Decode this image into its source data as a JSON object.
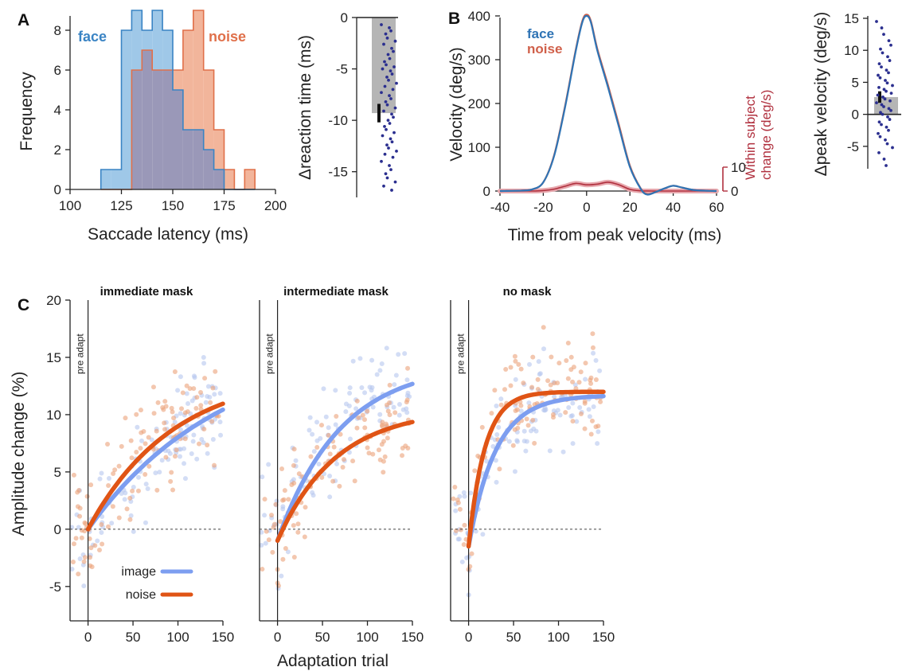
{
  "colors": {
    "face": "#3a84c4",
    "face_fill": "#9fc8e8",
    "noise": "#e0704a",
    "noise_fill": "#f2b59b",
    "overlap": "#9a98b8",
    "velocity_face": "#2f74b5",
    "velocity_noise": "#d0604a",
    "change": "#b0303e",
    "dots": "#2b2f8f",
    "image_fit": "#7d9ef0",
    "noise_fit": "#e05415",
    "image_scatter": "#b6c6ef",
    "noise_scatter": "#eba27a"
  },
  "panels": {
    "A": "A",
    "B": "B",
    "C": "C"
  },
  "chart_data": [
    {
      "id": "A-hist",
      "type": "bar",
      "xlabel": "Saccade latency (ms)",
      "ylabel": "Frequency",
      "xlim": [
        100,
        200
      ],
      "ylim": [
        0,
        9
      ],
      "xticks": [
        100,
        125,
        150,
        175,
        200
      ],
      "yticks": [
        0,
        2,
        4,
        6,
        8
      ],
      "bin_edges": [
        115,
        120,
        125,
        130,
        135,
        140,
        145,
        150,
        155,
        160,
        165,
        170,
        175,
        180,
        185,
        190
      ],
      "series": [
        {
          "name": "face",
          "values": [
            1,
            1,
            8,
            9,
            8,
            9,
            8,
            5,
            3,
            3,
            2,
            1,
            0,
            0,
            0
          ]
        },
        {
          "name": "noise",
          "values": [
            0,
            0,
            0,
            6,
            7,
            6,
            6,
            6,
            8,
            9,
            6,
            3,
            1,
            0,
            1
          ]
        }
      ]
    },
    {
      "id": "A-diff",
      "type": "scatter",
      "ylabel": "Δreaction time (ms)",
      "ylim": [
        -17.5,
        0
      ],
      "yticks": [
        0,
        -5,
        -10,
        -15
      ],
      "bar_mean": -9.3,
      "bar_error": 0.9,
      "points": [
        -0.7,
        -1,
        -1.3,
        -1.6,
        -2,
        -2.3,
        -2.6,
        -3,
        -3.3,
        -3.6,
        -4,
        -4.3,
        -4.6,
        -4.8,
        -5,
        -5.2,
        -5.5,
        -5.8,
        -6.1,
        -6.4,
        -6.7,
        -7,
        -7.3,
        -7.6,
        -7.9,
        -8.2,
        -8.5,
        -8.8,
        -9.1,
        -9.4,
        -9.7,
        -10,
        -10.3,
        -10.6,
        -10.9,
        -11.2,
        -11.5,
        -11.8,
        -12.1,
        -12.4,
        -12.7,
        -13,
        -13.3,
        -13.6,
        -14,
        -14.4,
        -14.8,
        -15.2,
        -15.6,
        -16,
        -16.4,
        -16.8
      ]
    },
    {
      "id": "B-velocity",
      "type": "line",
      "xlabel": "Time from peak velocity (ms)",
      "ylabel": "Velocity (deg/s)",
      "y2label": "Within subject change (deg/s)",
      "xlim": [
        -40,
        60
      ],
      "ylim": [
        0,
        400
      ],
      "y2lim": [
        0,
        10
      ],
      "xticks": [
        -40,
        -20,
        0,
        20,
        40,
        60
      ],
      "yticks": [
        0,
        100,
        200,
        300,
        400
      ],
      "y2ticks": [
        0,
        10
      ],
      "x": [
        -40,
        -30,
        -25,
        -20,
        -15,
        -10,
        -5,
        -2,
        0,
        2,
        5,
        10,
        15,
        20,
        25,
        28,
        32,
        36,
        40,
        44,
        50,
        60
      ],
      "series": [
        {
          "name": "face",
          "values": [
            0,
            1,
            4,
            20,
            80,
            190,
            320,
            385,
            400,
            385,
            320,
            235,
            145,
            55,
            5,
            -8,
            -2,
            6,
            12,
            8,
            2,
            0
          ]
        },
        {
          "name": "noise",
          "values": [
            0,
            1,
            4,
            20,
            82,
            193,
            323,
            388,
            403,
            388,
            324,
            240,
            150,
            58,
            6,
            -7,
            -2,
            6,
            12,
            8,
            2,
            0
          ]
        },
        {
          "name": "change",
          "axis": "y2",
          "x": [
            -40,
            -25,
            -20,
            -15,
            -10,
            -5,
            0,
            5,
            10,
            15,
            20,
            25,
            30,
            40,
            60
          ],
          "values": [
            0,
            0,
            0.2,
            0.8,
            2,
            3.2,
            2.6,
            2.9,
            3.7,
            2.6,
            0.7,
            0.1,
            0,
            0,
            0
          ]
        }
      ]
    },
    {
      "id": "B-diff",
      "type": "scatter",
      "ylabel": "Δpeak velocity (deg/s)",
      "ylim": [
        -8.5,
        15
      ],
      "yticks": [
        15,
        10,
        5,
        0,
        -5
      ],
      "bar_mean": 2.7,
      "bar_error": 0.9,
      "points": [
        14.5,
        13.5,
        12.5,
        11.5,
        10.8,
        10.2,
        9.6,
        9,
        8.4,
        7.9,
        7.4,
        6.9,
        6.5,
        6.1,
        5.7,
        5.3,
        4.9,
        4.5,
        4.2,
        3.9,
        3.6,
        3.3,
        3,
        2.7,
        2.4,
        2.1,
        1.8,
        1.5,
        1.2,
        0.9,
        0.6,
        0.3,
        0,
        -0.4,
        -0.8,
        -1.2,
        -1.6,
        -2,
        -2.5,
        -3,
        -3.5,
        -4,
        -4.6,
        -5.2,
        -6,
        -7,
        -8
      ]
    },
    {
      "id": "C-panels",
      "type": "scatter",
      "xlabel": "Adaptation trial",
      "ylabel": "Amplitude change (%)",
      "xlim": [
        -20,
        150
      ],
      "ylim": [
        -8,
        20
      ],
      "xticks": [
        0,
        50,
        100,
        150
      ],
      "yticks": [
        -5,
        0,
        5,
        10,
        15,
        20
      ],
      "pre_label": "pre adapt",
      "legend": [
        {
          "name": "image"
        },
        {
          "name": "noise"
        }
      ],
      "panels": [
        {
          "title": "immediate mask",
          "fits": {
            "image": {
              "amp": 16.5,
              "tau": 150,
              "y0": 0
            },
            "noise": {
              "amp": 13.8,
              "tau": 95,
              "y0": 0
            }
          }
        },
        {
          "title": "intermediate mask",
          "fits": {
            "image": {
              "amp": 15.5,
              "tau": 70,
              "y0": -1
            },
            "noise": {
              "amp": 11.5,
              "tau": 65,
              "y0": -1
            }
          }
        },
        {
          "title": "no mask",
          "fits": {
            "image": {
              "amp": 13.2,
              "tau": 30,
              "y0": -1.5
            },
            "noise": {
              "amp": 13.5,
              "tau": 18,
              "y0": -1.5
            }
          }
        }
      ]
    }
  ]
}
